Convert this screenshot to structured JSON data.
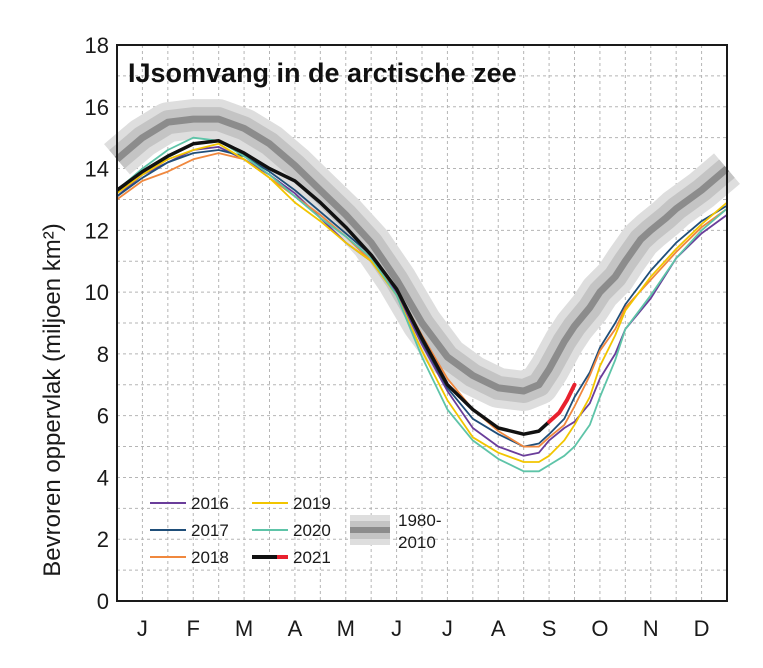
{
  "chart_data": {
    "type": "line",
    "title": "IJsomvang in de arctische zee",
    "xlabel": "",
    "ylabel": "Bevroren oppervlak (miljoen km²)",
    "ylim": [
      0,
      18
    ],
    "yticks": [
      "0",
      "2",
      "4",
      "6",
      "8",
      "10",
      "12",
      "14",
      "16",
      "18"
    ],
    "categories": [
      "J",
      "F",
      "M",
      "A",
      "M",
      "J",
      "J",
      "A",
      "S",
      "O",
      "N",
      "D"
    ],
    "grid": true,
    "legend": "bottom-left",
    "series": [
      {
        "name": "2016",
        "color": "#6a3d9a",
        "x": [
          0,
          0.5,
          1,
          1.5,
          2,
          2.5,
          3,
          3.5,
          4,
          4.5,
          5,
          5.5,
          6,
          6.5,
          7,
          7.5,
          8,
          8.3,
          8.5,
          8.8,
          9,
          9.3,
          9.5,
          9.8,
          10,
          10.5,
          11,
          11.5,
          12
        ],
        "y": [
          13.1,
          13.8,
          14.2,
          14.6,
          14.7,
          14.3,
          13.8,
          13.2,
          12.4,
          11.6,
          11.0,
          10.0,
          8.3,
          6.8,
          5.6,
          5.0,
          4.7,
          4.8,
          5.2,
          5.6,
          5.8,
          6.4,
          7.2,
          8.0,
          8.8,
          9.8,
          11.1,
          11.9,
          12.5
        ]
      },
      {
        "name": "2017",
        "color": "#1f4e79",
        "x": [
          0,
          0.5,
          1,
          1.5,
          2,
          2.5,
          3,
          3.5,
          4,
          4.5,
          5,
          5.5,
          6,
          6.5,
          7,
          7.5,
          8,
          8.3,
          8.5,
          8.8,
          9,
          9.3,
          9.5,
          9.8,
          10,
          10.5,
          11,
          11.5,
          12
        ],
        "y": [
          13.1,
          13.7,
          14.2,
          14.5,
          14.6,
          14.4,
          13.9,
          13.3,
          12.6,
          11.9,
          11.2,
          10.1,
          8.4,
          6.9,
          5.9,
          5.4,
          5.0,
          5.1,
          5.4,
          5.9,
          6.6,
          7.4,
          8.2,
          9.0,
          9.6,
          10.7,
          11.6,
          12.3,
          12.8
        ]
      },
      {
        "name": "2018",
        "color": "#f0883e",
        "x": [
          0,
          0.5,
          1,
          1.5,
          2,
          2.5,
          3,
          3.5,
          4,
          4.5,
          5,
          5.5,
          6,
          6.5,
          7,
          7.5,
          8,
          8.3,
          8.5,
          8.8,
          9,
          9.3,
          9.5,
          9.8,
          10,
          10.5,
          11,
          11.5,
          12
        ],
        "y": [
          13.0,
          13.6,
          13.9,
          14.3,
          14.5,
          14.3,
          13.7,
          13.1,
          12.5,
          11.8,
          11.0,
          10.1,
          8.6,
          7.2,
          6.2,
          5.5,
          5.0,
          5.0,
          5.3,
          5.7,
          6.3,
          7.3,
          8.1,
          8.8,
          9.5,
          10.4,
          11.3,
          12.1,
          12.7
        ]
      },
      {
        "name": "2019",
        "color": "#f2c500",
        "x": [
          0,
          0.5,
          1,
          1.5,
          2,
          2.5,
          3,
          3.5,
          4,
          4.5,
          5,
          5.5,
          6,
          6.5,
          7,
          7.5,
          8,
          8.3,
          8.5,
          8.8,
          9,
          9.3,
          9.5,
          9.8,
          10,
          10.5,
          11,
          11.5,
          12
        ],
        "y": [
          13.2,
          13.8,
          14.3,
          14.6,
          14.8,
          14.3,
          13.7,
          12.9,
          12.3,
          11.6,
          11.0,
          9.9,
          8.1,
          6.5,
          5.3,
          4.8,
          4.5,
          4.5,
          4.7,
          5.2,
          5.7,
          6.6,
          7.6,
          8.6,
          9.4,
          10.5,
          11.4,
          12.2,
          12.9
        ]
      },
      {
        "name": "2020",
        "color": "#5ec4a8",
        "x": [
          0,
          0.5,
          1,
          1.5,
          2,
          2.5,
          3,
          3.5,
          4,
          4.5,
          5,
          5.5,
          6,
          6.5,
          7,
          7.5,
          8,
          8.3,
          8.5,
          8.8,
          9,
          9.3,
          9.5,
          9.8,
          10,
          10.5,
          11,
          11.5,
          12
        ],
        "y": [
          13.3,
          14.0,
          14.6,
          15.0,
          14.9,
          14.4,
          13.8,
          13.1,
          12.4,
          11.8,
          11.1,
          9.9,
          7.9,
          6.2,
          5.2,
          4.6,
          4.2,
          4.2,
          4.4,
          4.7,
          5.0,
          5.7,
          6.6,
          7.8,
          8.8,
          9.9,
          11.1,
          12.0,
          12.7
        ]
      },
      {
        "name": "2021",
        "color": "#111111",
        "highlight_color": "#e8212e",
        "highlight_from_x": 8.5,
        "x": [
          0,
          0.5,
          1,
          1.5,
          2,
          2.5,
          3,
          3.5,
          4,
          4.5,
          5,
          5.5,
          6,
          6.5,
          7,
          7.5,
          8,
          8.3,
          8.5,
          8.7,
          8.85,
          9.0
        ],
        "y": [
          13.3,
          13.9,
          14.4,
          14.8,
          14.9,
          14.5,
          14.0,
          13.6,
          12.9,
          12.1,
          11.2,
          10.1,
          8.5,
          7.0,
          6.2,
          5.6,
          5.4,
          5.5,
          5.8,
          6.1,
          6.5,
          7.0
        ]
      },
      {
        "name": "1980-\n2010",
        "name_lines": [
          "1980-",
          "2010"
        ],
        "color": "#8c8c8c",
        "band_color": "#cfcfcf",
        "x": [
          0,
          0.5,
          1,
          1.5,
          2,
          2.5,
          3,
          3.5,
          4,
          4.5,
          5,
          5.5,
          6,
          6.5,
          7,
          7.5,
          8,
          8.3,
          8.5,
          8.8,
          9,
          9.3,
          9.5,
          9.8,
          10,
          10.3,
          10.5,
          10.8,
          11,
          11.5,
          12
        ],
        "y": [
          14.3,
          15.0,
          15.5,
          15.6,
          15.6,
          15.3,
          14.8,
          14.1,
          13.3,
          12.5,
          11.6,
          10.4,
          9.0,
          7.9,
          7.3,
          6.9,
          6.8,
          7.0,
          7.5,
          8.4,
          8.9,
          9.5,
          10.0,
          10.5,
          11.0,
          11.7,
          12.0,
          12.4,
          12.7,
          13.3,
          14.0
        ]
      }
    ]
  }
}
